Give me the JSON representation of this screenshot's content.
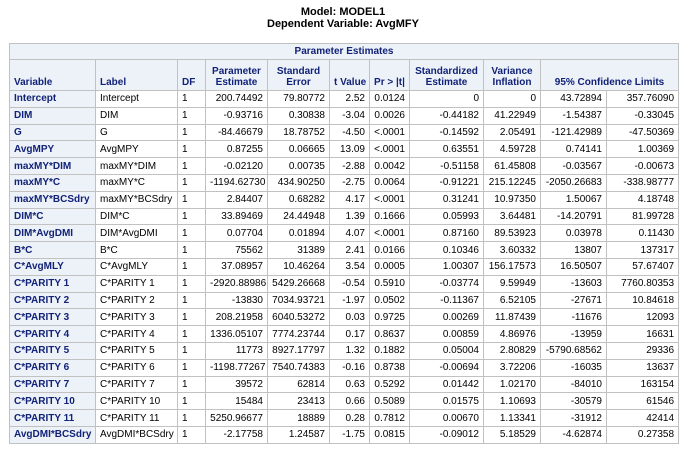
{
  "title": "Model: MODEL1",
  "subtitle": "Dependent Variable: AvgMFY",
  "table_caption": "Parameter Estimates",
  "headers": {
    "variable": "Variable",
    "label": "Label",
    "df": "DF",
    "param1": "Parameter",
    "param2": "Estimate",
    "se1": "Standard",
    "se2": "Error",
    "t": "t Value",
    "p": "Pr > |t|",
    "std1": "Standardized",
    "std2": "Estimate",
    "vi1": "Variance",
    "vi2": "Inflation",
    "ci": "95% Confidence Limits"
  },
  "rows": [
    {
      "variable": "Intercept",
      "label": "Intercept",
      "df": "1",
      "estimate": "200.74492",
      "se": "79.80772",
      "t": "2.52",
      "p": "0.0124",
      "std": "0",
      "vif": "0",
      "lcl": "43.72894",
      "ucl": "357.76090"
    },
    {
      "variable": "DIM",
      "label": "DIM",
      "df": "1",
      "estimate": "-0.93716",
      "se": "0.30838",
      "t": "-3.04",
      "p": "0.0026",
      "std": "-0.44182",
      "vif": "41.22949",
      "lcl": "-1.54387",
      "ucl": "-0.33045"
    },
    {
      "variable": "G",
      "label": "G",
      "df": "1",
      "estimate": "-84.46679",
      "se": "18.78752",
      "t": "-4.50",
      "p": "<.0001",
      "std": "-0.14592",
      "vif": "2.05491",
      "lcl": "-121.42989",
      "ucl": "-47.50369"
    },
    {
      "variable": "AvgMPY",
      "label": "AvgMPY",
      "df": "1",
      "estimate": "0.87255",
      "se": "0.06665",
      "t": "13.09",
      "p": "<.0001",
      "std": "0.63551",
      "vif": "4.59728",
      "lcl": "0.74141",
      "ucl": "1.00369"
    },
    {
      "variable": "maxMY*DIM",
      "label": "maxMY*DIM",
      "df": "1",
      "estimate": "-0.02120",
      "se": "0.00735",
      "t": "-2.88",
      "p": "0.0042",
      "std": "-0.51158",
      "vif": "61.45808",
      "lcl": "-0.03567",
      "ucl": "-0.00673"
    },
    {
      "variable": "maxMY*C",
      "label": "maxMY*C",
      "df": "1",
      "estimate": "-1194.62730",
      "se": "434.90250",
      "t": "-2.75",
      "p": "0.0064",
      "std": "-0.91221",
      "vif": "215.12245",
      "lcl": "-2050.26683",
      "ucl": "-338.98777"
    },
    {
      "variable": "maxMY*BCSdry",
      "label": "maxMY*BCSdry",
      "df": "1",
      "estimate": "2.84407",
      "se": "0.68282",
      "t": "4.17",
      "p": "<.0001",
      "std": "0.31241",
      "vif": "10.97350",
      "lcl": "1.50067",
      "ucl": "4.18748"
    },
    {
      "variable": "DIM*C",
      "label": "DIM*C",
      "df": "1",
      "estimate": "33.89469",
      "se": "24.44948",
      "t": "1.39",
      "p": "0.1666",
      "std": "0.05993",
      "vif": "3.64481",
      "lcl": "-14.20791",
      "ucl": "81.99728"
    },
    {
      "variable": "DIM*AvgDMI",
      "label": "DIM*AvgDMI",
      "df": "1",
      "estimate": "0.07704",
      "se": "0.01894",
      "t": "4.07",
      "p": "<.0001",
      "std": "0.87160",
      "vif": "89.53923",
      "lcl": "0.03978",
      "ucl": "0.11430"
    },
    {
      "variable": "B*C",
      "label": "B*C",
      "df": "1",
      "estimate": "75562",
      "se": "31389",
      "t": "2.41",
      "p": "0.0166",
      "std": "0.10346",
      "vif": "3.60332",
      "lcl": "13807",
      "ucl": "137317"
    },
    {
      "variable": "C*AvgMLY",
      "label": "C*AvgMLY",
      "df": "1",
      "estimate": "37.08957",
      "se": "10.46264",
      "t": "3.54",
      "p": "0.0005",
      "std": "1.00307",
      "vif": "156.17573",
      "lcl": "16.50507",
      "ucl": "57.67407"
    },
    {
      "variable": "C*PARITY 1",
      "label": "C*PARITY 1",
      "df": "1",
      "estimate": "-2920.88986",
      "se": "5429.26668",
      "t": "-0.54",
      "p": "0.5910",
      "std": "-0.03774",
      "vif": "9.59949",
      "lcl": "-13603",
      "ucl": "7760.80353"
    },
    {
      "variable": "C*PARITY 2",
      "label": "C*PARITY 2",
      "df": "1",
      "estimate": "-13830",
      "se": "7034.93721",
      "t": "-1.97",
      "p": "0.0502",
      "std": "-0.11367",
      "vif": "6.52105",
      "lcl": "-27671",
      "ucl": "10.84618"
    },
    {
      "variable": "C*PARITY 3",
      "label": "C*PARITY 3",
      "df": "1",
      "estimate": "208.21958",
      "se": "6040.53272",
      "t": "0.03",
      "p": "0.9725",
      "std": "0.00269",
      "vif": "11.87439",
      "lcl": "-11676",
      "ucl": "12093"
    },
    {
      "variable": "C*PARITY 4",
      "label": "C*PARITY 4",
      "df": "1",
      "estimate": "1336.05107",
      "se": "7774.23744",
      "t": "0.17",
      "p": "0.8637",
      "std": "0.00859",
      "vif": "4.86976",
      "lcl": "-13959",
      "ucl": "16631"
    },
    {
      "variable": "C*PARITY 5",
      "label": "C*PARITY 5",
      "df": "1",
      "estimate": "11773",
      "se": "8927.17797",
      "t": "1.32",
      "p": "0.1882",
      "std": "0.05004",
      "vif": "2.80829",
      "lcl": "-5790.68562",
      "ucl": "29336"
    },
    {
      "variable": "C*PARITY 6",
      "label": "C*PARITY 6",
      "df": "1",
      "estimate": "-1198.77267",
      "se": "7540.74383",
      "t": "-0.16",
      "p": "0.8738",
      "std": "-0.00694",
      "vif": "3.72206",
      "lcl": "-16035",
      "ucl": "13637"
    },
    {
      "variable": "C*PARITY 7",
      "label": "C*PARITY 7",
      "df": "1",
      "estimate": "39572",
      "se": "62814",
      "t": "0.63",
      "p": "0.5292",
      "std": "0.01442",
      "vif": "1.02170",
      "lcl": "-84010",
      "ucl": "163154"
    },
    {
      "variable": "C*PARITY 10",
      "label": "C*PARITY 10",
      "df": "1",
      "estimate": "15484",
      "se": "23413",
      "t": "0.66",
      "p": "0.5089",
      "std": "0.01575",
      "vif": "1.10693",
      "lcl": "-30579",
      "ucl": "61546"
    },
    {
      "variable": "C*PARITY 11",
      "label": "C*PARITY 11",
      "df": "1",
      "estimate": "5250.96677",
      "se": "18889",
      "t": "0.28",
      "p": "0.7812",
      "std": "0.00670",
      "vif": "1.13341",
      "lcl": "-31912",
      "ucl": "42414"
    },
    {
      "variable": "AvgDMI*BCSdry",
      "label": "AvgDMI*BCSdry",
      "df": "1",
      "estimate": "-2.17758",
      "se": "1.24587",
      "t": "-1.75",
      "p": "0.0815",
      "std": "-0.09012",
      "vif": "5.18529",
      "lcl": "-4.62874",
      "ucl": "0.27358"
    }
  ]
}
